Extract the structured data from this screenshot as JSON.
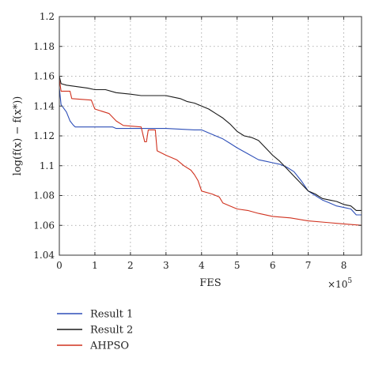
{
  "chart_data": {
    "type": "line",
    "title": "",
    "xlabel": "FES",
    "ylabel": "log(f(x) − f(x*))",
    "x_multiplier": "×10",
    "x_multiplier_exp": "5",
    "xlim": [
      0,
      8.5
    ],
    "ylim": [
      1.04,
      1.2
    ],
    "xticks": [
      0,
      1,
      2,
      3,
      4,
      5,
      6,
      7,
      8
    ],
    "yticks": [
      1.04,
      1.06,
      1.08,
      1.1,
      1.12,
      1.14,
      1.16,
      1.18,
      1.2
    ],
    "x_tick_labels": [
      "0",
      "1",
      "2",
      "3",
      "4",
      "5",
      "6",
      "7",
      "8"
    ],
    "y_tick_labels": [
      "1.04",
      "1.06",
      "1.08",
      "1.1",
      "1.12",
      "1.14",
      "1.16",
      "1.18",
      "1.2"
    ],
    "grid": true,
    "legend_position": "bottom-left, below plot",
    "series": [
      {
        "name": "Result 1",
        "color": "#2e4fb8",
        "points": [
          [
            0,
            1.152
          ],
          [
            0.05,
            1.141
          ],
          [
            0.2,
            1.136
          ],
          [
            0.3,
            1.13
          ],
          [
            0.4,
            1.127
          ],
          [
            0.45,
            1.126
          ],
          [
            1.5,
            1.126
          ],
          [
            1.6,
            1.125
          ],
          [
            3.0,
            1.125
          ],
          [
            3.8,
            1.124
          ],
          [
            4.0,
            1.124
          ],
          [
            4.2,
            1.122
          ],
          [
            4.4,
            1.12
          ],
          [
            4.6,
            1.118
          ],
          [
            4.8,
            1.115
          ],
          [
            5.0,
            1.112
          ],
          [
            5.3,
            1.108
          ],
          [
            5.6,
            1.104
          ],
          [
            5.8,
            1.103
          ],
          [
            6.0,
            1.102
          ],
          [
            6.2,
            1.101
          ],
          [
            6.4,
            1.099
          ],
          [
            6.6,
            1.096
          ],
          [
            6.8,
            1.09
          ],
          [
            7.0,
            1.083
          ],
          [
            7.2,
            1.08
          ],
          [
            7.4,
            1.077
          ],
          [
            7.6,
            1.075
          ],
          [
            7.8,
            1.073
          ],
          [
            8.0,
            1.072
          ],
          [
            8.2,
            1.071
          ],
          [
            8.35,
            1.067
          ],
          [
            8.5,
            1.067
          ]
        ]
      },
      {
        "name": "Result 2",
        "color": "#1a1a1a",
        "points": [
          [
            0,
            1.16
          ],
          [
            0.05,
            1.155
          ],
          [
            0.2,
            1.154
          ],
          [
            0.5,
            1.153
          ],
          [
            0.8,
            1.152
          ],
          [
            1.0,
            1.151
          ],
          [
            1.3,
            1.151
          ],
          [
            1.6,
            1.149
          ],
          [
            2.0,
            1.148
          ],
          [
            2.3,
            1.147
          ],
          [
            3.0,
            1.147
          ],
          [
            3.2,
            1.146
          ],
          [
            3.4,
            1.145
          ],
          [
            3.6,
            1.143
          ],
          [
            3.8,
            1.142
          ],
          [
            4.0,
            1.14
          ],
          [
            4.2,
            1.138
          ],
          [
            4.4,
            1.135
          ],
          [
            4.6,
            1.132
          ],
          [
            4.8,
            1.128
          ],
          [
            5.0,
            1.123
          ],
          [
            5.2,
            1.12
          ],
          [
            5.4,
            1.119
          ],
          [
            5.6,
            1.117
          ],
          [
            5.8,
            1.112
          ],
          [
            6.0,
            1.107
          ],
          [
            6.2,
            1.103
          ],
          [
            6.4,
            1.098
          ],
          [
            6.6,
            1.093
          ],
          [
            6.8,
            1.088
          ],
          [
            7.0,
            1.083
          ],
          [
            7.2,
            1.081
          ],
          [
            7.4,
            1.078
          ],
          [
            7.6,
            1.077
          ],
          [
            7.8,
            1.076
          ],
          [
            8.0,
            1.074
          ],
          [
            8.2,
            1.073
          ],
          [
            8.35,
            1.07
          ],
          [
            8.5,
            1.07
          ]
        ]
      },
      {
        "name": "AHPSO",
        "color": "#d0321f",
        "points": [
          [
            0,
            1.158
          ],
          [
            0.05,
            1.15
          ],
          [
            0.3,
            1.15
          ],
          [
            0.35,
            1.145
          ],
          [
            0.9,
            1.144
          ],
          [
            1.0,
            1.138
          ],
          [
            1.4,
            1.135
          ],
          [
            1.6,
            1.13
          ],
          [
            1.8,
            1.127
          ],
          [
            2.3,
            1.126
          ],
          [
            2.4,
            1.116
          ],
          [
            2.45,
            1.116
          ],
          [
            2.5,
            1.124
          ],
          [
            2.7,
            1.124
          ],
          [
            2.75,
            1.11
          ],
          [
            3.0,
            1.107
          ],
          [
            3.3,
            1.104
          ],
          [
            3.5,
            1.1
          ],
          [
            3.7,
            1.097
          ],
          [
            3.8,
            1.094
          ],
          [
            3.9,
            1.09
          ],
          [
            4.0,
            1.083
          ],
          [
            4.3,
            1.081
          ],
          [
            4.5,
            1.079
          ],
          [
            4.6,
            1.075
          ],
          [
            4.8,
            1.073
          ],
          [
            5.0,
            1.071
          ],
          [
            5.3,
            1.07
          ],
          [
            5.6,
            1.068
          ],
          [
            6.0,
            1.066
          ],
          [
            6.5,
            1.065
          ],
          [
            7.0,
            1.063
          ],
          [
            7.5,
            1.062
          ],
          [
            8.0,
            1.061
          ],
          [
            8.5,
            1.06
          ]
        ]
      }
    ]
  }
}
